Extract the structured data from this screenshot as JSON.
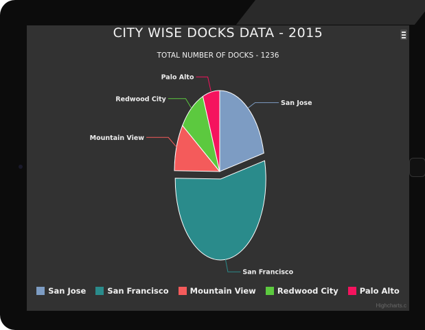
{
  "chart_data": {
    "type": "pie",
    "title": "CITY WISE DOCKS DATA - 2015",
    "subtitle": "TOTAL NUMBER OF DOCKS - 1236",
    "slices": [
      {
        "name": "San Jose",
        "value": 264,
        "color": "#7d9cc3"
      },
      {
        "name": "San Francisco",
        "value": 665,
        "color": "#2a8b8b"
      },
      {
        "name": "Mountain View",
        "value": 117,
        "color": "#f45b5b"
      },
      {
        "name": "Redwood City",
        "value": 115,
        "color": "#5cc93f"
      },
      {
        "name": "Palo Alto",
        "value": 75,
        "color": "#f5135e"
      }
    ],
    "legend_position": "bottom-center"
  },
  "credits": "Highcharts.c"
}
